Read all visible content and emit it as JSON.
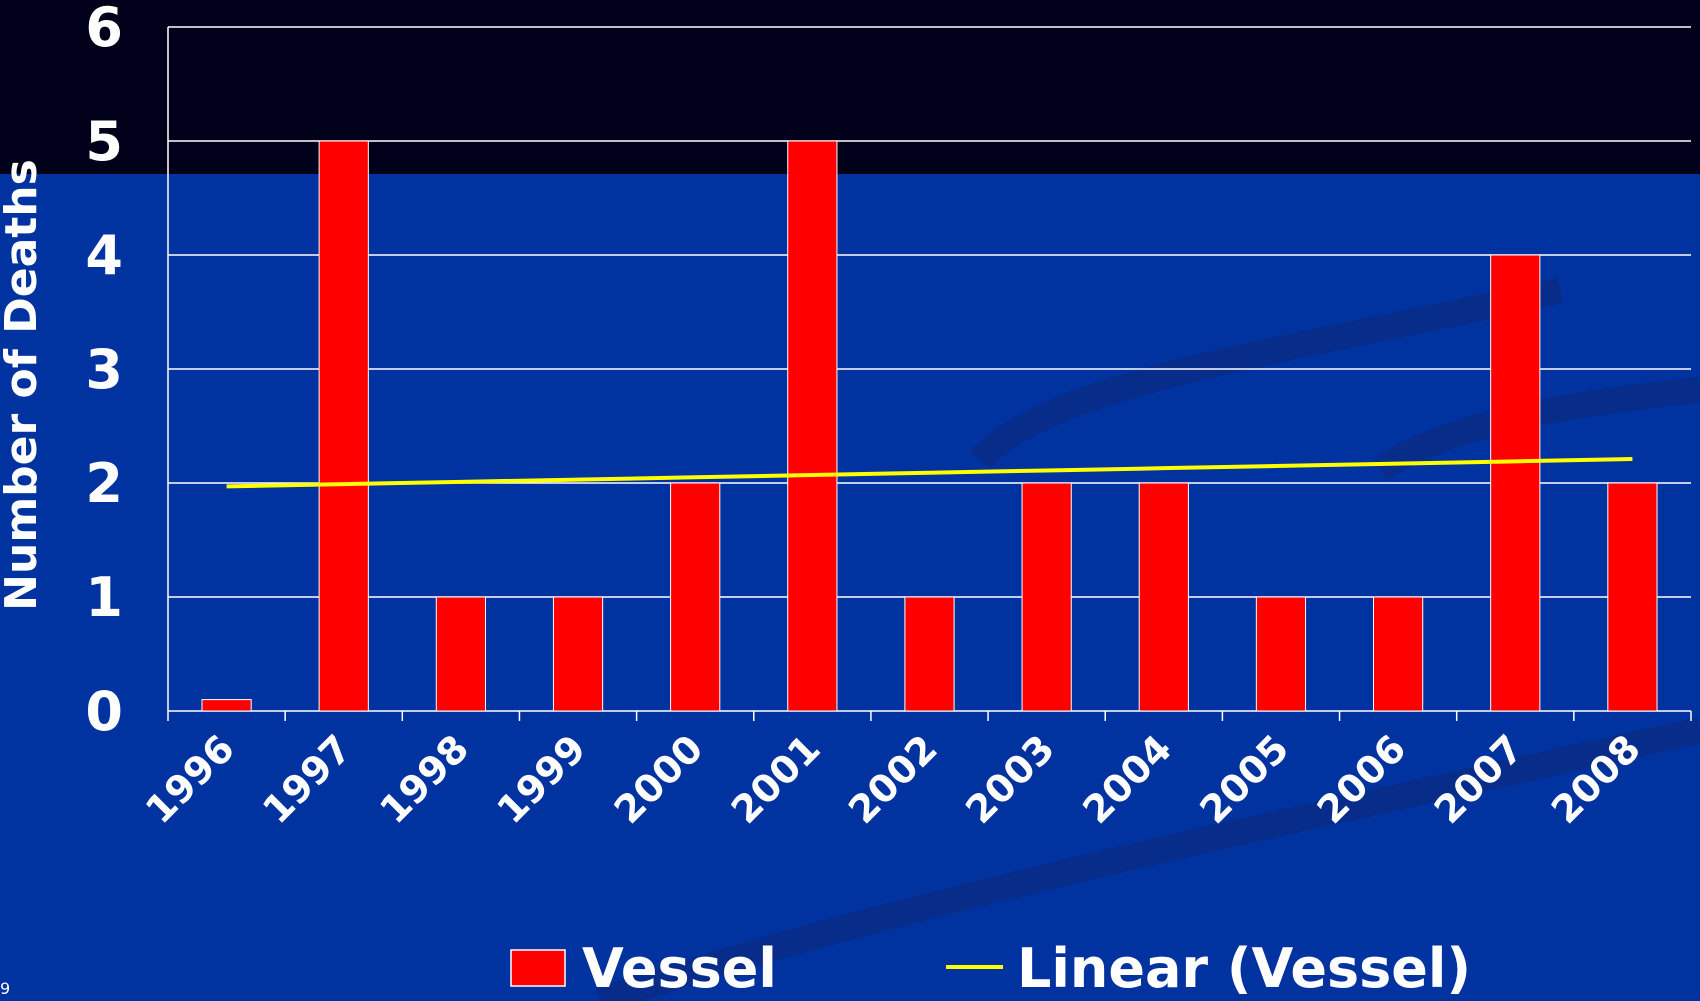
{
  "chart_data": {
    "type": "bar",
    "y_label": "Number of Deaths",
    "categories": [
      "1996",
      "1997",
      "1998",
      "1999",
      "2000",
      "2001",
      "2002",
      "2003",
      "2004",
      "2005",
      "2006",
      "2007",
      "2008"
    ],
    "series": [
      {
        "name": "Vessel",
        "type": "bar",
        "color": "#ff0000",
        "values": [
          0.1,
          5,
          1,
          1,
          2,
          5,
          1,
          2,
          2,
          1,
          1,
          4,
          2
        ]
      },
      {
        "name": "Linear (Vessel)",
        "type": "line",
        "color": "#ffff00",
        "values": [
          1.97,
          1.99,
          2.01,
          2.03,
          2.05,
          2.07,
          2.09,
          2.11,
          2.13,
          2.15,
          2.17,
          2.19,
          2.21
        ]
      }
    ],
    "ylim": [
      0,
      6
    ],
    "yticks": [
      0,
      1,
      2,
      3,
      4,
      5,
      6
    ],
    "grid": true,
    "legend": "bottom",
    "slide_number": "9"
  }
}
